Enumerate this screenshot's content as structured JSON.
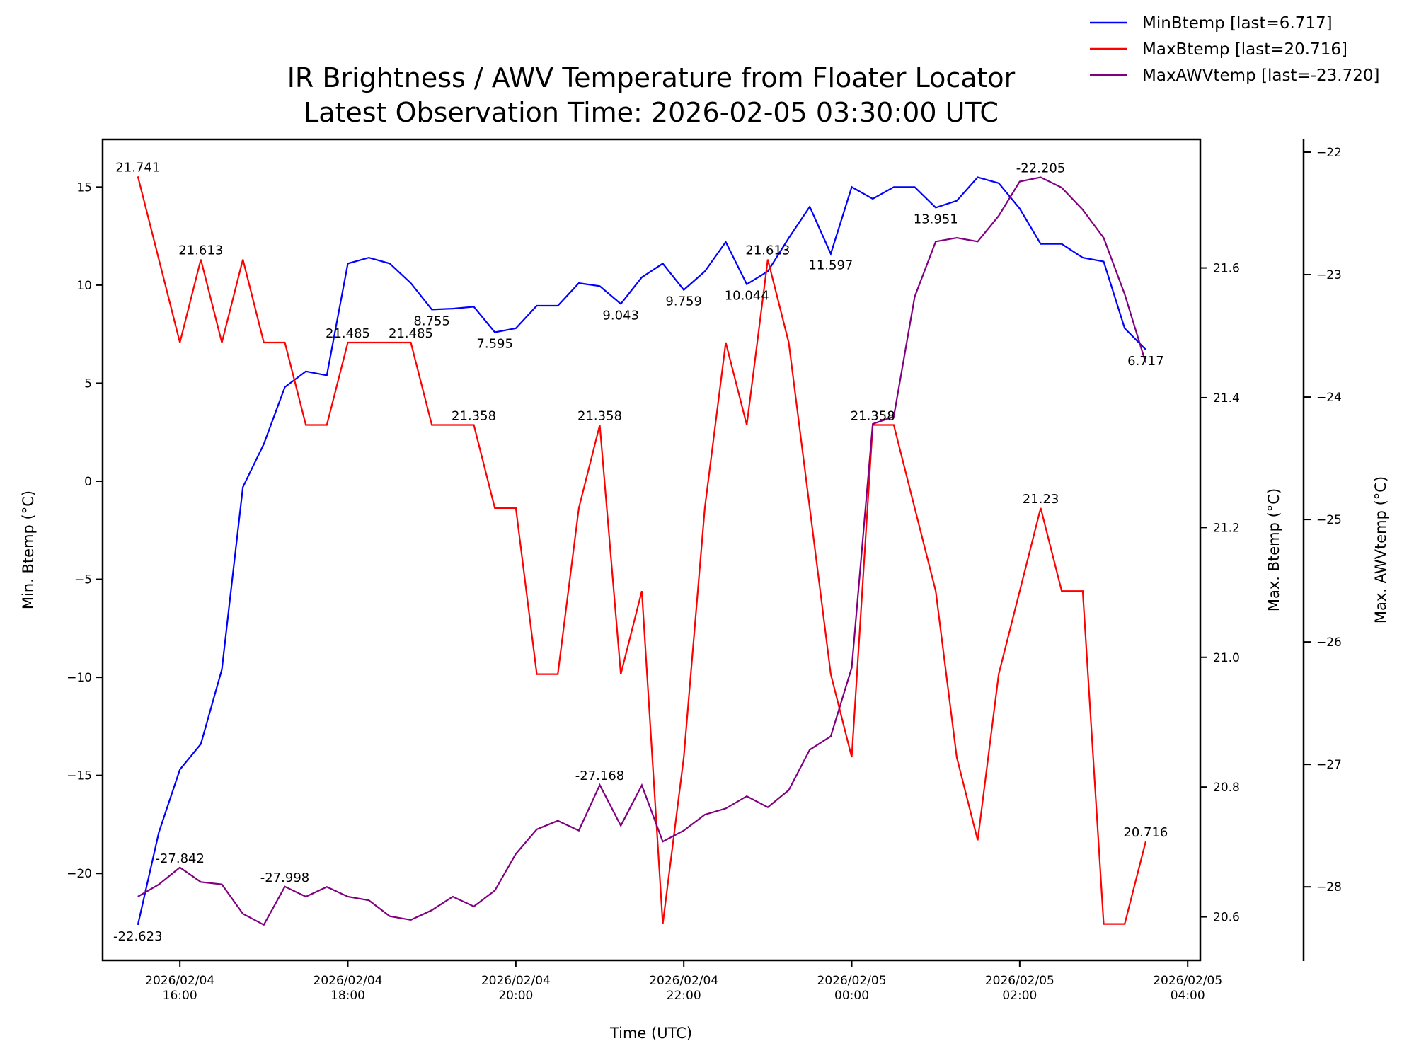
{
  "chart_data": {
    "type": "line",
    "title": "IR Brightness / AWV Temperature from Floater Locator",
    "subtitle": "Latest Observation Time: 2026-02-05 03:30:00 UTC",
    "xlabel": "Time (UTC)",
    "x_start": "2026-02-04 15:30",
    "x_interval_minutes": 15,
    "xlim_hours_from_1600": [
      -0.92,
      12.15
    ],
    "x_ticks": [
      {
        "hours": 0,
        "line1": "2026/02/04",
        "line2": "16:00"
      },
      {
        "hours": 2,
        "line1": "2026/02/04",
        "line2": "18:00"
      },
      {
        "hours": 4,
        "line1": "2026/02/04",
        "line2": "20:00"
      },
      {
        "hours": 6,
        "line1": "2026/02/04",
        "line2": "22:00"
      },
      {
        "hours": 8,
        "line1": "2026/02/05",
        "line2": "00:00"
      },
      {
        "hours": 10,
        "line1": "2026/02/05",
        "line2": "02:00"
      },
      {
        "hours": 12,
        "line1": "2026/02/05",
        "line2": "04:00"
      }
    ],
    "axes": {
      "left": {
        "label": "Min. Btemp (°C)",
        "ylim": [
          -24.43,
          17.43
        ],
        "ticks": [
          15,
          10,
          5,
          0,
          -5,
          -10,
          -15,
          -20
        ],
        "tick_labels": [
          "15",
          "10",
          "5",
          "0",
          "−5",
          "−10",
          "−15",
          "−20"
        ]
      },
      "right": {
        "label": "Max. Btemp (°C)",
        "ylim": [
          20.533,
          21.798
        ],
        "ticks": [
          21.6,
          21.4,
          21.2,
          21.0,
          20.8,
          20.6
        ],
        "tick_labels": [
          "21.6",
          "21.4",
          "21.2",
          "21.0",
          "20.8",
          "20.6"
        ]
      },
      "right2": {
        "label": "Max. AWVtemp (°C)",
        "ylim": [
          -28.6,
          -21.896
        ],
        "ticks": [
          -22,
          -23,
          -24,
          -25,
          -26,
          -27,
          -28
        ],
        "tick_labels": [
          "−22",
          "−23",
          "−24",
          "−25",
          "−26",
          "−27",
          "−28"
        ]
      }
    },
    "grid": false,
    "legend_placement": "top-right",
    "series": [
      {
        "name": "MinBtemp",
        "legend": "MinBtemp [last=6.717]",
        "axis": "left",
        "color": "#0000ff",
        "values": [
          -22.623,
          -17.9,
          -14.7,
          -13.4,
          -9.6,
          -0.3,
          1.9,
          4.8,
          5.6,
          5.4,
          11.1,
          11.4,
          11.1,
          10.1,
          8.755,
          8.8,
          8.9,
          7.595,
          7.8,
          8.95,
          8.95,
          10.1,
          9.95,
          9.043,
          10.4,
          11.1,
          9.759,
          10.7,
          12.2,
          10.044,
          10.7,
          12.4,
          14.0,
          11.597,
          15.0,
          14.4,
          15.0,
          15.0,
          13.951,
          14.3,
          15.5,
          15.2,
          13.9,
          12.1,
          12.1,
          11.4,
          11.2,
          7.8,
          6.717
        ],
        "annotations": [
          {
            "index": 0,
            "text": "-22.623",
            "pos": "below"
          },
          {
            "index": 14,
            "text": "8.755",
            "pos": "below"
          },
          {
            "index": 17,
            "text": "7.595",
            "pos": "below"
          },
          {
            "index": 23,
            "text": "9.043",
            "pos": "below"
          },
          {
            "index": 26,
            "text": "9.759",
            "pos": "below"
          },
          {
            "index": 29,
            "text": "10.044",
            "pos": "below"
          },
          {
            "index": 33,
            "text": "11.597",
            "pos": "below"
          },
          {
            "index": 38,
            "text": "13.951",
            "pos": "below"
          },
          {
            "index": 48,
            "text": "6.717",
            "pos": "below"
          }
        ]
      },
      {
        "name": "MaxBtemp",
        "legend": "MaxBtemp [last=20.716]",
        "axis": "right",
        "color": "#ff0000",
        "values": [
          21.741,
          21.613,
          21.485,
          21.613,
          21.485,
          21.613,
          21.485,
          21.485,
          21.358,
          21.358,
          21.485,
          21.485,
          21.485,
          21.485,
          21.358,
          21.358,
          21.358,
          21.23,
          21.23,
          20.974,
          20.974,
          21.23,
          21.358,
          20.974,
          21.102,
          20.589,
          20.846,
          21.23,
          21.485,
          21.358,
          21.613,
          21.485,
          21.23,
          20.974,
          20.846,
          21.358,
          21.358,
          21.23,
          21.102,
          20.846,
          20.718,
          20.974,
          21.102,
          21.23,
          21.102,
          21.102,
          20.589,
          20.589,
          20.716
        ],
        "annotations": [
          {
            "index": 0,
            "text": "21.741",
            "pos": "above"
          },
          {
            "index": 3,
            "text": "21.613",
            "pos": "above"
          },
          {
            "index": 10,
            "text": "21.485",
            "pos": "above"
          },
          {
            "index": 13,
            "text": "21.485",
            "pos": "above"
          },
          {
            "index": 16,
            "text": "21.358",
            "pos": "above"
          },
          {
            "index": 22,
            "text": "21.358",
            "pos": "above"
          },
          {
            "index": 30,
            "text": "21.613",
            "pos": "above"
          },
          {
            "index": 35,
            "text": "21.358",
            "pos": "above"
          },
          {
            "index": 43,
            "text": "21.23",
            "pos": "above"
          },
          {
            "index": 48,
            "text": "20.716",
            "pos": "above"
          }
        ]
      },
      {
        "name": "MaxAWVtemp",
        "legend": "MaxAWVtemp [last=-23.720]",
        "axis": "right2",
        "color": "#800080",
        "values": [
          -28.08,
          -27.98,
          -27.842,
          -27.96,
          -27.98,
          -28.22,
          -28.31,
          -27.998,
          -28.08,
          -28.0,
          -28.08,
          -28.11,
          -28.24,
          -28.27,
          -28.19,
          -28.08,
          -28.16,
          -28.03,
          -27.73,
          -27.53,
          -27.46,
          -27.54,
          -27.168,
          -27.5,
          -27.17,
          -27.63,
          -27.54,
          -27.41,
          -27.36,
          -27.26,
          -27.35,
          -27.21,
          -26.88,
          -26.77,
          -26.21,
          -24.22,
          -24.16,
          -23.18,
          -22.73,
          -22.7,
          -22.73,
          -22.52,
          -22.24,
          -22.205,
          -22.29,
          -22.47,
          -22.7,
          -23.16,
          -23.72
        ],
        "annotations": [
          {
            "index": 2,
            "text": "-27.842",
            "pos": "above"
          },
          {
            "index": 7,
            "text": "-27.998",
            "pos": "above"
          },
          {
            "index": 22,
            "text": "-27.168",
            "pos": "above"
          },
          {
            "index": 43,
            "text": "-22.205",
            "pos": "above"
          }
        ]
      }
    ]
  }
}
